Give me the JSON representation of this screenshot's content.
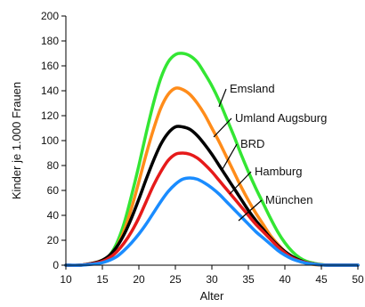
{
  "chart_data": {
    "type": "line",
    "title": "",
    "xlabel": "Alter",
    "ylabel": "Kinder je 1.000 Frauen",
    "xlim": [
      10,
      50
    ],
    "ylim": [
      0,
      200
    ],
    "xticks": [
      10,
      15,
      20,
      25,
      30,
      35,
      40,
      45,
      50
    ],
    "yticks": [
      0,
      20,
      40,
      60,
      80,
      100,
      120,
      140,
      160,
      180,
      200
    ],
    "grid": false,
    "legend": "inline labels to the right of the peaks",
    "x": [
      10,
      12,
      14,
      15,
      16,
      17,
      18,
      19,
      20,
      21,
      22,
      23,
      24,
      25,
      26,
      27,
      28,
      29,
      30,
      31,
      32,
      33,
      34,
      35,
      36,
      37,
      38,
      39,
      40,
      41,
      42,
      43,
      44,
      45,
      46,
      48,
      50
    ],
    "series": [
      {
        "name": "Emsland",
        "color": "#33e633",
        "values": [
          0,
          0,
          2,
          4,
          8,
          18,
          34,
          56,
          80,
          106,
          130,
          150,
          163,
          169,
          170,
          168,
          163,
          154,
          144,
          132,
          118,
          104,
          89,
          75,
          62,
          50,
          38,
          27,
          18,
          11,
          6,
          3,
          1.5,
          0.5,
          0,
          0,
          0
        ]
      },
      {
        "name": "Umland Augsburg",
        "color": "#ff8c1a",
        "values": [
          0,
          0,
          2,
          4,
          7,
          15,
          28,
          46,
          67,
          89,
          109,
          126,
          137,
          142,
          141,
          137,
          130,
          121,
          110,
          99,
          87,
          75,
          63,
          52,
          42,
          33,
          24,
          17,
          11,
          6,
          3,
          1.5,
          0.5,
          0,
          0,
          0,
          0
        ]
      },
      {
        "name": "BRD",
        "color": "#000000",
        "values": [
          0,
          0,
          2,
          4,
          8,
          15,
          25,
          38,
          53,
          69,
          84,
          97,
          106,
          111,
          111,
          109,
          104,
          97,
          89,
          80,
          71,
          62,
          53,
          44,
          36,
          29,
          22,
          16,
          11,
          7,
          4,
          2,
          1,
          0.3,
          0,
          0,
          0
        ]
      },
      {
        "name": "Hamburg",
        "color": "#e61a1a",
        "values": [
          0,
          0,
          1.5,
          3,
          6,
          11,
          18,
          27,
          38,
          51,
          64,
          75,
          84,
          89,
          90,
          89,
          86,
          81,
          75,
          68,
          61,
          54,
          47,
          40,
          33,
          27,
          21,
          15,
          10,
          6,
          3.5,
          2,
          1,
          0.3,
          0,
          0,
          0
        ]
      },
      {
        "name": "München",
        "color": "#1a8cff",
        "values": [
          0,
          0,
          1,
          2,
          4,
          7,
          12,
          18,
          25,
          33,
          42,
          51,
          59,
          65,
          69,
          70,
          69,
          66,
          62,
          57,
          51,
          45,
          39,
          33,
          27,
          22,
          17,
          12,
          8,
          5,
          3,
          1.5,
          0.8,
          0.2,
          0,
          0,
          0
        ]
      }
    ]
  }
}
